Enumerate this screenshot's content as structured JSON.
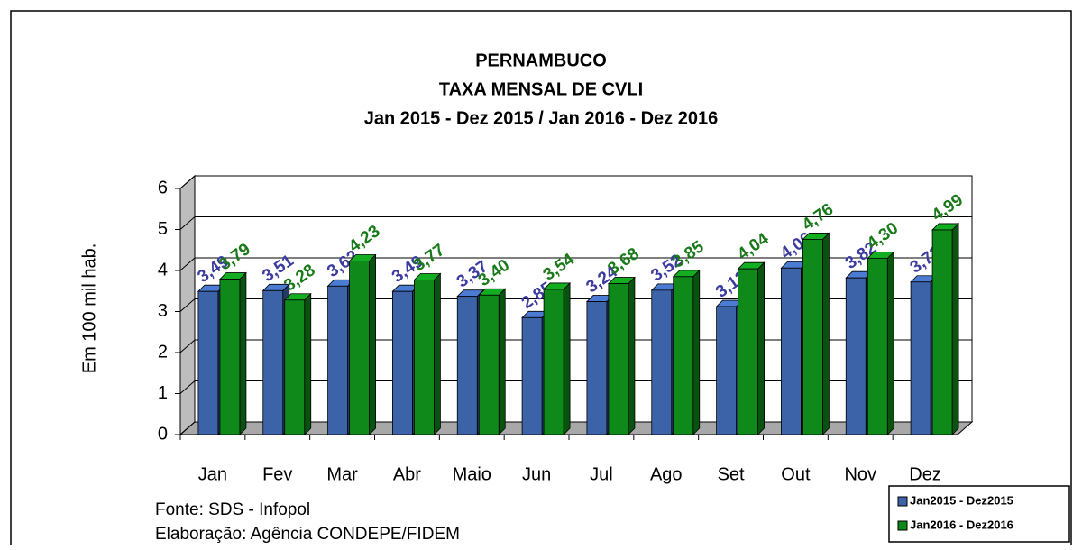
{
  "chart_data": {
    "type": "bar",
    "title": [
      "PERNAMBUCO",
      "TAXA MENSAL DE CVLI",
      "Jan 2015 - Dez 2015  /  Jan 2016 - Dez 2016"
    ],
    "y_label": "Em 100 mil hab.",
    "categories": [
      "Jan",
      "Fev",
      "Mar",
      "Abr",
      "Maio",
      "Jun",
      "Jul",
      "Ago",
      "Set",
      "Out",
      "Nov",
      "Dez"
    ],
    "series": [
      {
        "name": "Jan2015 - Dez2015",
        "color": "#3c62a8",
        "values": [
          3.49,
          3.51,
          3.62,
          3.49,
          3.37,
          2.85,
          3.24,
          3.52,
          3.12,
          4.06,
          3.82,
          3.72
        ],
        "value_labels": [
          "3,49",
          "3,51",
          "3,62",
          "3,49",
          "3,37",
          "2,85",
          "3,24",
          "3,52",
          "3,12",
          "4,06",
          "3,82",
          "3,72"
        ],
        "label_color": "#3b3ba0"
      },
      {
        "name": "Jan2016 - Dez2016",
        "color": "#0f8a1a",
        "values": [
          3.79,
          3.28,
          4.23,
          3.77,
          3.4,
          3.54,
          3.68,
          3.85,
          4.04,
          4.76,
          4.3,
          4.99
        ],
        "value_labels": [
          "3,79",
          "3,28",
          "4,23",
          "3,77",
          "3,40",
          "3,54",
          "3,68",
          "3,85",
          "4,04",
          "4,76",
          "4,30",
          "4,99"
        ],
        "label_color": "#1a7a1a"
      }
    ],
    "ylim": [
      0,
      6
    ],
    "yticks": [
      0,
      1,
      2,
      3,
      4,
      5,
      6
    ],
    "grid": true,
    "legend": "bottom-right",
    "notes": [
      "Fonte: SDS - Infopol",
      "Elaboração: Agência CONDEPE/FIDEM"
    ]
  }
}
